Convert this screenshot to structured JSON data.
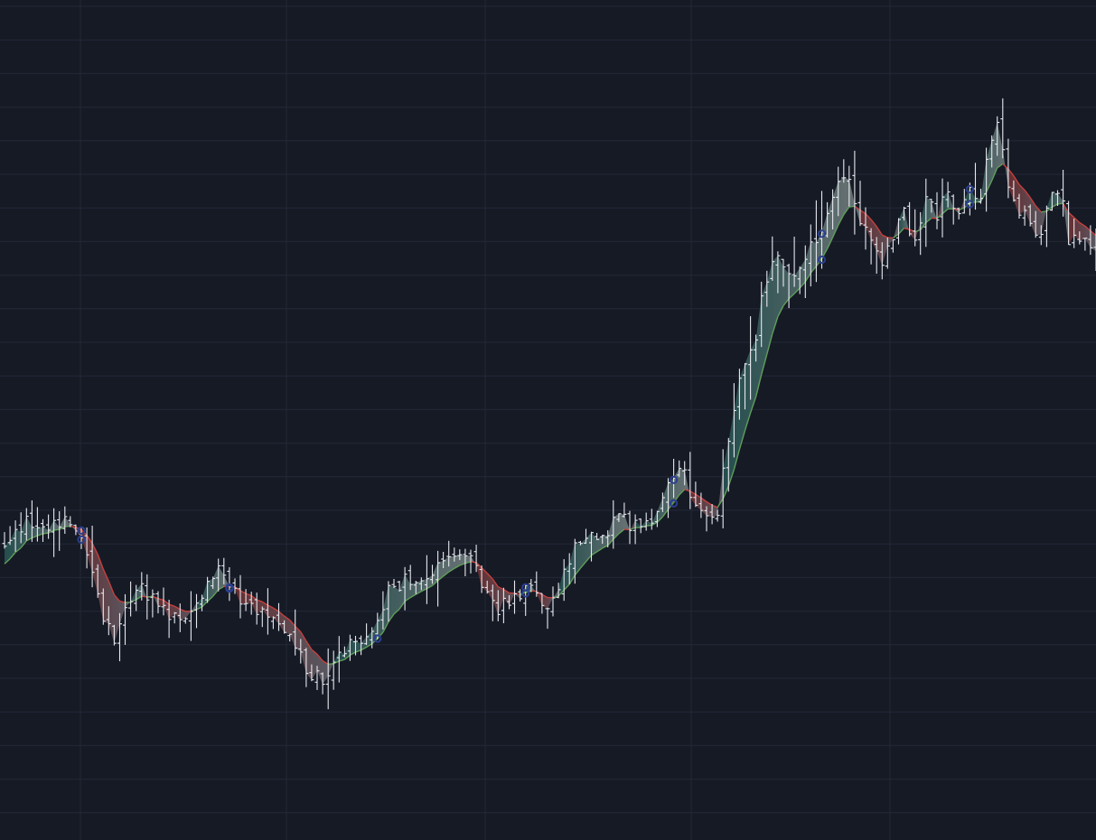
{
  "chart_data": {
    "type": "ohlc",
    "bar_count": 200,
    "title": "",
    "xlabel": "",
    "ylabel": "",
    "xlim": [
      0,
      199
    ],
    "ylim": [
      0,
      100
    ],
    "grid": true,
    "legend": "none",
    "series": [
      {
        "name": "",
        "kind": "ohlc",
        "close_anchors": [
          [
            0,
            33
          ],
          [
            4,
            36
          ],
          [
            8,
            35
          ],
          [
            12,
            37
          ],
          [
            14,
            34
          ],
          [
            17,
            26
          ],
          [
            20,
            20
          ],
          [
            22,
            24
          ],
          [
            24,
            28
          ],
          [
            27,
            26
          ],
          [
            30,
            24
          ],
          [
            33,
            23
          ],
          [
            36,
            27
          ],
          [
            38,
            29
          ],
          [
            40,
            30
          ],
          [
            43,
            26
          ],
          [
            46,
            25
          ],
          [
            49,
            23
          ],
          [
            52,
            21
          ],
          [
            55,
            17
          ],
          [
            58,
            15
          ],
          [
            61,
            18
          ],
          [
            64,
            21
          ],
          [
            66,
            21
          ],
          [
            68,
            23
          ],
          [
            70,
            27
          ],
          [
            74,
            29
          ],
          [
            78,
            30
          ],
          [
            82,
            31
          ],
          [
            84,
            32
          ],
          [
            86,
            30
          ],
          [
            88,
            27
          ],
          [
            90,
            25
          ],
          [
            92,
            26
          ],
          [
            94,
            27
          ],
          [
            96,
            27
          ],
          [
            98,
            25
          ],
          [
            100,
            26
          ],
          [
            102,
            29
          ],
          [
            104,
            33
          ],
          [
            106,
            35
          ],
          [
            108,
            34
          ],
          [
            110,
            35
          ],
          [
            112,
            37
          ],
          [
            114,
            36
          ],
          [
            117,
            36
          ],
          [
            120,
            39
          ],
          [
            122,
            42
          ],
          [
            124,
            43
          ],
          [
            125,
            40
          ],
          [
            127,
            38
          ],
          [
            128,
            37
          ],
          [
            130,
            37
          ],
          [
            131,
            43
          ],
          [
            133,
            51
          ],
          [
            135,
            58
          ],
          [
            137,
            60
          ],
          [
            138,
            66
          ],
          [
            140,
            72
          ],
          [
            142,
            70
          ],
          [
            144,
            68
          ],
          [
            145,
            70
          ],
          [
            146,
            72
          ],
          [
            148,
            74
          ],
          [
            150,
            77
          ],
          [
            151,
            80
          ],
          [
            152,
            82
          ],
          [
            154,
            81
          ],
          [
            155,
            79
          ],
          [
            157,
            75
          ],
          [
            158,
            73
          ],
          [
            160,
            71
          ],
          [
            162,
            74
          ],
          [
            164,
            77
          ],
          [
            166,
            74
          ],
          [
            168,
            79
          ],
          [
            170,
            77
          ],
          [
            172,
            80
          ],
          [
            174,
            78
          ],
          [
            176,
            81
          ],
          [
            178,
            79
          ],
          [
            180,
            88
          ],
          [
            181,
            90
          ],
          [
            182,
            86
          ],
          [
            183,
            81
          ],
          [
            185,
            78
          ],
          [
            187,
            77
          ],
          [
            189,
            74
          ],
          [
            190,
            78
          ],
          [
            191,
            80
          ],
          [
            193,
            78
          ],
          [
            194,
            74
          ],
          [
            196,
            73
          ],
          [
            199,
            73
          ]
        ]
      },
      {
        "name": "",
        "kind": "line",
        "smoothing": 0.22
      }
    ],
    "colors": {
      "background": "#161a25",
      "grid": "#232838",
      "bars": "#e7e9ef",
      "trend_up": "#5f9e5a",
      "trend_down": "#c4403e",
      "fill_up_outer": "#25504f",
      "fill_up_inner": "#6e7779",
      "fill_down_outer": "#6b2e31",
      "fill_down_inner": "#5b5d66",
      "marker": "#2b3f8f"
    },
    "markers": [
      {
        "bar": 14,
        "kind": "pair"
      },
      {
        "bar": 41,
        "kind": "pair"
      },
      {
        "bar": 68,
        "kind": "single"
      },
      {
        "bar": 95,
        "kind": "pair"
      },
      {
        "bar": 122,
        "kind": "pair"
      },
      {
        "bar": 149,
        "kind": "pair"
      },
      {
        "bar": 176,
        "kind": "pair"
      },
      {
        "bar": 203,
        "kind": "pair"
      }
    ]
  }
}
